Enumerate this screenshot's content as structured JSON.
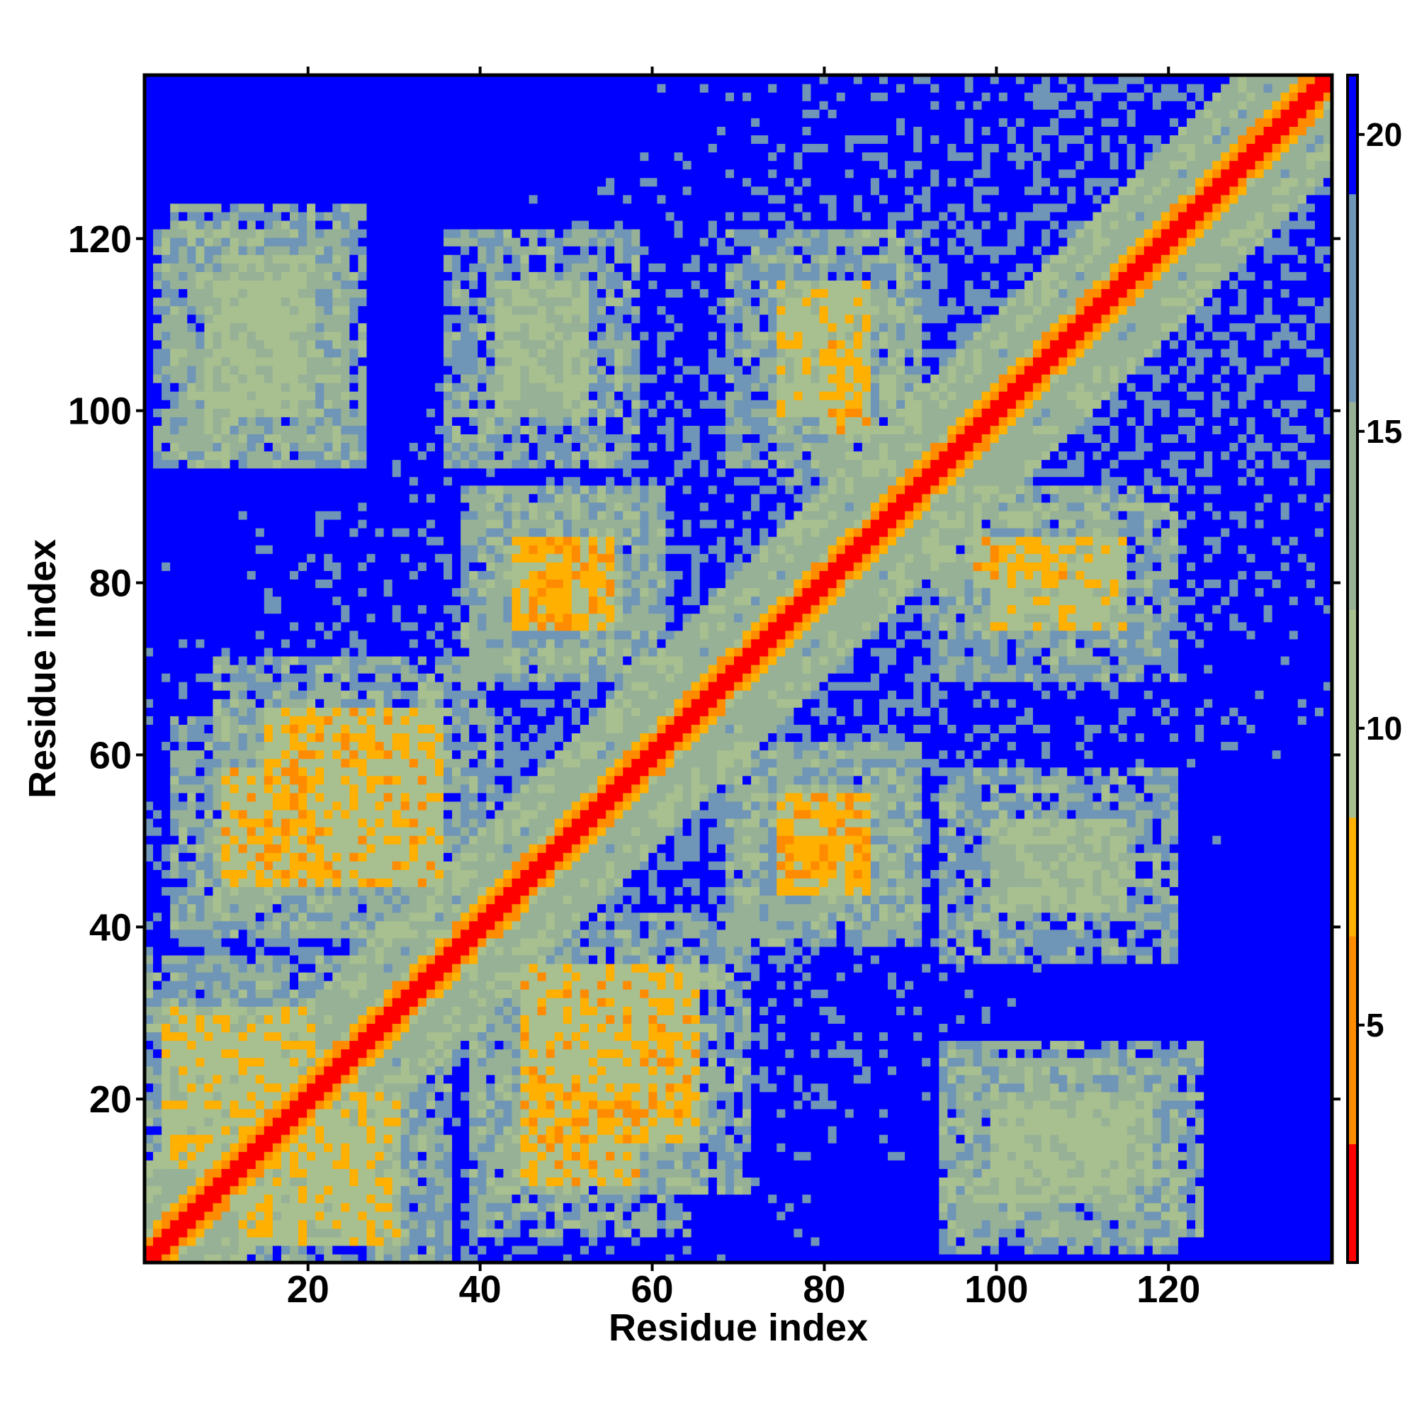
{
  "chart_data": {
    "type": "heatmap",
    "title": "",
    "xlabel": "Residue index",
    "ylabel": "Residue index",
    "n_residues": 139,
    "xlim": [
      1,
      139
    ],
    "ylim": [
      1,
      139
    ],
    "x_ticks": [
      20,
      40,
      60,
      80,
      100,
      120
    ],
    "y_ticks": [
      20,
      40,
      60,
      80,
      100,
      120
    ],
    "colorbar": {
      "ticks": [
        5,
        10,
        15,
        20
      ],
      "range": [
        1,
        21
      ],
      "threshold": 8.5,
      "colors": {
        "near": "#ff0000",
        "mid": "#ff8c00",
        "contact_edge": "#ffb000",
        "far_low": "#a8bf8f",
        "far_mid": "#96b196",
        "far_high": "#6f95b7",
        "background": "#0000ff"
      }
    },
    "features": {
      "diagonal_band_width": 4,
      "secondary_structure_band_offset": 9,
      "off_diagonal_contacts": [
        {
          "x": [
            3,
            20
          ],
          "y": [
            12,
            30
          ],
          "strength": 7
        },
        {
          "x": [
            15,
            35
          ],
          "y": [
            45,
            65
          ],
          "strength": 6
        },
        {
          "x": [
            45,
            55
          ],
          "y": [
            75,
            85
          ],
          "strength": 6
        },
        {
          "x": [
            45,
            58
          ],
          "y": [
            10,
            22
          ],
          "strength": 6
        },
        {
          "x": [
            75,
            85
          ],
          "y": [
            44,
            55
          ],
          "strength": 6
        },
        {
          "x": [
            80,
            85
          ],
          "y": [
            98,
            108
          ],
          "strength": 6
        },
        {
          "x": [
            100,
            115
          ],
          "y": [
            75,
            85
          ],
          "strength": 7
        },
        {
          "x": [
            100,
            115
          ],
          "y": [
            8,
            18
          ],
          "strength": 9
        },
        {
          "x": [
            100,
            115
          ],
          "y": [
            42,
            52
          ],
          "strength": 9
        },
        {
          "x": [
            10,
            20
          ],
          "y": [
            100,
            118
          ],
          "strength": 9
        }
      ]
    }
  }
}
